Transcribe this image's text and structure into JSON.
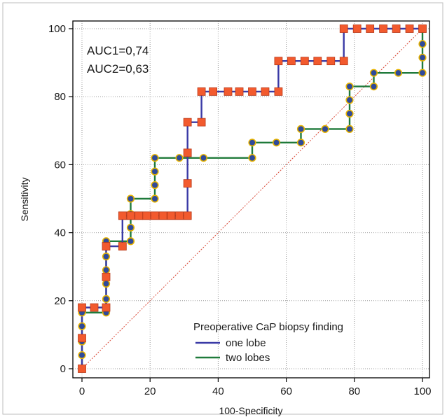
{
  "chart_data": {
    "type": "line",
    "xlabel": "100-Specificity",
    "ylabel": "Sensitivity",
    "xlim": [
      0,
      100
    ],
    "ylim": [
      0,
      100
    ],
    "xticks": [
      "0",
      "20",
      "40",
      "60",
      "80",
      "100"
    ],
    "yticks": [
      "0",
      "20",
      "40",
      "60",
      "80",
      "100"
    ],
    "grid": true,
    "annotations": [
      "AUC1=0,74",
      "AUC2=0,63"
    ],
    "legend": {
      "title": "Preoperative CaP biopsy finding",
      "placement": "bottom-right",
      "entries": [
        "one lobe",
        "two lobes"
      ]
    },
    "reference_line": [
      [
        0,
        0
      ],
      [
        100,
        100
      ]
    ],
    "series": [
      {
        "name": "one lobe",
        "line_color": "#3a3aa6",
        "marker": "square",
        "marker_fill": "#f25a2e",
        "points": [
          [
            0,
            0
          ],
          [
            0,
            9
          ],
          [
            0,
            18
          ],
          [
            3.6,
            18
          ],
          [
            7.1,
            18
          ],
          [
            7.1,
            27
          ],
          [
            7.1,
            36
          ],
          [
            11.9,
            36
          ],
          [
            11.9,
            45
          ],
          [
            14.3,
            45
          ],
          [
            16.7,
            45
          ],
          [
            19,
            45
          ],
          [
            21.4,
            45
          ],
          [
            23.8,
            45
          ],
          [
            26.2,
            45
          ],
          [
            28.6,
            45
          ],
          [
            31,
            45
          ],
          [
            31,
            54.5
          ],
          [
            31,
            63.5
          ],
          [
            31,
            72.5
          ],
          [
            35.1,
            72.5
          ],
          [
            35.1,
            81.5
          ],
          [
            38.5,
            81.5
          ],
          [
            42.9,
            81.5
          ],
          [
            46.2,
            81.5
          ],
          [
            50,
            81.5
          ],
          [
            53.8,
            81.5
          ],
          [
            57.7,
            81.5
          ],
          [
            57.7,
            90.5
          ],
          [
            61.5,
            90.5
          ],
          [
            65.4,
            90.5
          ],
          [
            69.2,
            90.5
          ],
          [
            73.1,
            90.5
          ],
          [
            76.9,
            90.5
          ],
          [
            76.9,
            100
          ],
          [
            80.8,
            100
          ],
          [
            84.6,
            100
          ],
          [
            88.5,
            100
          ],
          [
            92.3,
            100
          ],
          [
            96.2,
            100
          ],
          [
            100,
            100
          ]
        ]
      },
      {
        "name": "two lobes",
        "line_color": "#1f7a3a",
        "marker": "circle",
        "marker_fill": "#2f4a9a",
        "marker_stroke": "#e8b400",
        "points": [
          [
            0,
            0
          ],
          [
            0,
            4
          ],
          [
            0,
            8
          ],
          [
            0,
            12.5
          ],
          [
            0,
            16.5
          ],
          [
            7.1,
            16.5
          ],
          [
            7.1,
            20.5
          ],
          [
            7.1,
            25
          ],
          [
            7.1,
            29
          ],
          [
            7.1,
            33
          ],
          [
            7.1,
            37.5
          ],
          [
            14.3,
            37.5
          ],
          [
            14.3,
            41.5
          ],
          [
            14.3,
            45.5
          ],
          [
            14.3,
            50
          ],
          [
            21.4,
            50
          ],
          [
            21.4,
            54
          ],
          [
            21.4,
            58
          ],
          [
            21.4,
            62
          ],
          [
            28.6,
            62
          ],
          [
            35.7,
            62
          ],
          [
            50,
            62
          ],
          [
            50,
            66.5
          ],
          [
            57.1,
            66.5
          ],
          [
            64.3,
            66.5
          ],
          [
            64.3,
            70.5
          ],
          [
            71.4,
            70.5
          ],
          [
            78.6,
            70.5
          ],
          [
            78.6,
            75
          ],
          [
            78.6,
            79
          ],
          [
            78.6,
            83
          ],
          [
            85.7,
            83
          ],
          [
            85.7,
            87
          ],
          [
            92.9,
            87
          ],
          [
            100,
            87
          ],
          [
            100,
            91.5
          ],
          [
            100,
            95.5
          ],
          [
            100,
            100
          ]
        ]
      }
    ]
  }
}
